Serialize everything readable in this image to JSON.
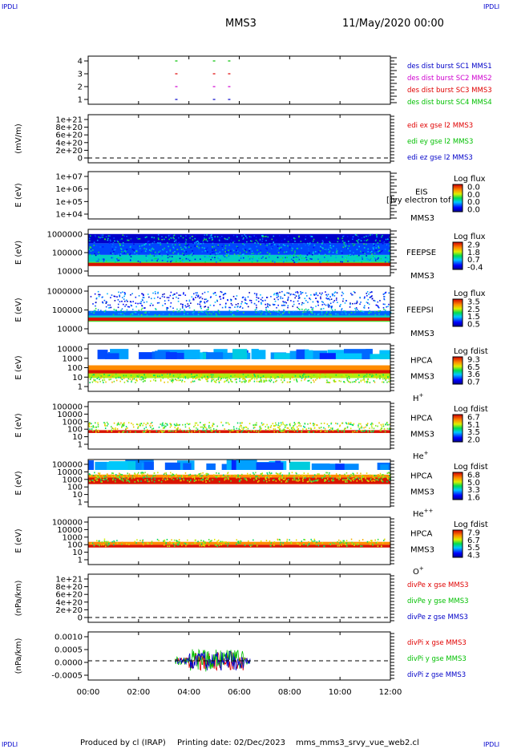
{
  "corner_label": "IPDLI",
  "header": {
    "title": "MMS3",
    "date": "11/May/2020 00:00"
  },
  "footer": {
    "produced": "Produced by cl (IRAP)",
    "printing": "Printing date: 02/Dec/2023",
    "file": "mms_mms3_srvy_vue_web2.cl"
  },
  "time_axis": {
    "ticks": [
      "00:00",
      "02:00",
      "04:00",
      "06:00",
      "08:00",
      "10:00",
      "12:00"
    ],
    "range_hours": [
      0,
      12
    ]
  },
  "colors": {
    "blue": "#0000c8",
    "magenta": "#d000d0",
    "red": "#e00000",
    "green": "#00c000"
  },
  "chart_data": [
    {
      "type": "scatter",
      "id": "burst",
      "ylabel": "",
      "yticks": [
        "4",
        "3",
        "2",
        "1"
      ],
      "legend": [
        {
          "text": "des dist burst SC1 MMS1",
          "color": "#0000c8"
        },
        {
          "text": "des dist burst SC2 MMS2",
          "color": "#d000d0"
        },
        {
          "text": "des dist burst SC3 MMS3",
          "color": "#e00000"
        },
        {
          "text": "des dist burst SC4 MMS4",
          "color": "#00c000"
        }
      ],
      "series": [
        {
          "level": 4,
          "color": "#00c000",
          "times_h": [
            3.5,
            5.0,
            5.6
          ]
        },
        {
          "level": 3,
          "color": "#e00000",
          "times_h": [
            3.5,
            5.0,
            5.6
          ]
        },
        {
          "level": 2,
          "color": "#d000d0",
          "times_h": [
            3.5,
            5.0,
            5.6
          ]
        },
        {
          "level": 1,
          "color": "#0000c8",
          "times_h": [
            3.5,
            5.0,
            5.6
          ]
        }
      ]
    },
    {
      "type": "line",
      "id": "edi",
      "ylabel": "(mV/m)",
      "yticks": [
        "1e+21",
        "8e+20",
        "6e+20",
        "4e+20",
        "2e+20",
        "0"
      ],
      "legend": [
        {
          "text": "edi ex gse l2 MMS3",
          "color": "#e00000"
        },
        {
          "text": "edi ey gse l2 MMS3",
          "color": "#00c000"
        },
        {
          "text": "edi ez gse l2 MMS3",
          "color": "#0000c8"
        }
      ]
    },
    {
      "type": "heatmap",
      "id": "eis",
      "ylabel": "E (eV)",
      "yticks": [
        "1e+07",
        "1e+06",
        "1e+05",
        "1e+04"
      ],
      "instrument": "EIS",
      "sc": "MMS3",
      "note": "[]vy electron tof",
      "cbar_title": "Log flux",
      "cbar_ticks": [
        "0.0",
        "0.0",
        "0.0",
        "0.0"
      ]
    },
    {
      "type": "heatmap",
      "id": "feepse",
      "ylabel": "E (eV)",
      "yticks": [
        "1000000",
        "100000",
        "10000"
      ],
      "instrument": "FEEPSE",
      "sc": "MMS3",
      "cbar_title": "Log flux",
      "cbar_ticks": [
        "2.9",
        "1.8",
        "0.7",
        "-0.4"
      ]
    },
    {
      "type": "heatmap",
      "id": "feepsi",
      "ylabel": "E (eV)",
      "yticks": [
        "1000000",
        "100000",
        "10000"
      ],
      "instrument": "FEEPSI",
      "sc": "MMS3",
      "cbar_title": "Log flux",
      "cbar_ticks": [
        "3.5",
        "2.5",
        "1.5",
        "0.5"
      ]
    },
    {
      "type": "heatmap",
      "id": "hpca_h",
      "ylabel": "E (eV)",
      "yticks": [
        "10000",
        "1000",
        "100",
        "10",
        "1"
      ],
      "instrument": "HPCA",
      "sc": "MMS3",
      "species": "H",
      "charge": "+",
      "cbar_title": "Log fdist",
      "cbar_ticks": [
        "9.3",
        "6.5",
        "3.6",
        "0.7"
      ]
    },
    {
      "type": "heatmap",
      "id": "hpca_he",
      "ylabel": "E (eV)",
      "yticks": [
        "100000",
        "10000",
        "1000",
        "100",
        "10",
        "1"
      ],
      "instrument": "HPCA",
      "sc": "MMS3",
      "species": "He",
      "charge": "+",
      "cbar_title": "Log fdist",
      "cbar_ticks": [
        "6.7",
        "5.1",
        "3.5",
        "2.0"
      ]
    },
    {
      "type": "heatmap",
      "id": "hpca_he2",
      "ylabel": "E (eV)",
      "yticks": [
        "100000",
        "10000",
        "1000",
        "100",
        "10",
        "1"
      ],
      "instrument": "HPCA",
      "sc": "MMS3",
      "species": "He",
      "charge": "++",
      "cbar_title": "Log fdist",
      "cbar_ticks": [
        "6.8",
        "5.0",
        "3.3",
        "1.6"
      ]
    },
    {
      "type": "heatmap",
      "id": "hpca_o",
      "ylabel": "E (eV)",
      "yticks": [
        "100000",
        "10000",
        "1000",
        "100",
        "10",
        "1"
      ],
      "instrument": "HPCA",
      "sc": "MMS3",
      "species": "O",
      "charge": "+",
      "cbar_title": "Log fdist",
      "cbar_ticks": [
        "7.9",
        "6.7",
        "5.5",
        "4.3"
      ]
    },
    {
      "type": "line",
      "id": "divpe",
      "ylabel": "(nPa/km)",
      "yticks": [
        "1e+21",
        "8e+20",
        "6e+20",
        "4e+20",
        "2e+20",
        "0"
      ],
      "legend": [
        {
          "text": "divPe x gse MMS3",
          "color": "#e00000"
        },
        {
          "text": "divPe y gse MMS3",
          "color": "#00c000"
        },
        {
          "text": "divPe z gse MMS3",
          "color": "#0000c8"
        }
      ]
    },
    {
      "type": "line",
      "id": "divpi",
      "ylabel": "(nPa/km)",
      "yticks": [
        "0.0010",
        "0.0005",
        "0.0000",
        "-0.0005"
      ],
      "ylim": [
        -0.0008,
        0.0012
      ],
      "data_range_h": [
        3.45,
        6.45
      ],
      "legend": [
        {
          "text": "divPi x gse MMS3",
          "color": "#e00000"
        },
        {
          "text": "divPi y gse MMS3",
          "color": "#00c000"
        },
        {
          "text": "divPi z gse MMS3",
          "color": "#0000c8"
        }
      ]
    }
  ]
}
